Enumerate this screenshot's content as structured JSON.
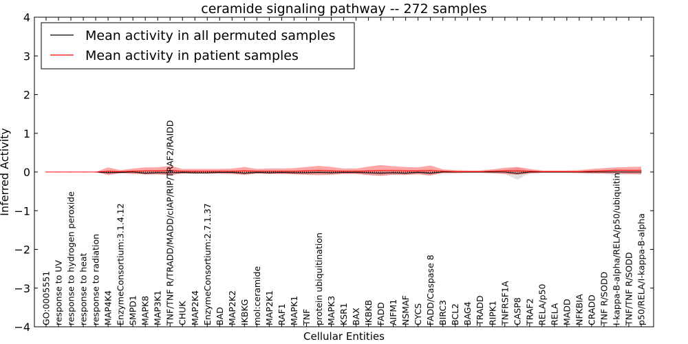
{
  "chart_data": {
    "type": "line",
    "title": "ceramide signaling pathway -- 272 samples",
    "xlabel": "Cellular Entities",
    "ylabel": "Inferred Activity",
    "ylim": [
      -4,
      4
    ],
    "yticks": [
      "−4",
      "−3",
      "−2",
      "−1",
      "0",
      "1",
      "2",
      "3",
      "4"
    ],
    "yticks_values": [
      -4,
      -3,
      -2,
      -1,
      0,
      1,
      2,
      3,
      4
    ],
    "categories": [
      "GO:0005551",
      "response to UV",
      "response to hydrogen peroxide",
      "response to heat",
      "response to radiation",
      "MAP4K4",
      "EnzymeConsortium:3.1.4.12",
      "SMPD1",
      "MAPK8",
      "MAP3K1",
      "TNF/TNF R/TRADD/MADD/cIAP/RIP/TRAF2/RAIDD",
      "CHUK",
      "MAP2K4",
      "EnzymeConsortium:2.7.1.37",
      "BAD",
      "MAP2K2",
      "IKBKG",
      "mol:ceramide",
      "MAP2K1",
      "RAF1",
      "MAPK1",
      "TNF",
      "protein ubiquitination",
      "MAPK3",
      "KSR1",
      "BAX",
      "IKBKB",
      "FADD",
      "AIFM1",
      "NSMAF",
      "CYCS",
      "FADD/Caspase 8",
      "BIRC3",
      "BCL2",
      "BAG4",
      "TRADD",
      "RIPK1",
      "TNFRSF1A",
      "CASP8",
      "TRAF2",
      "RELA/p50",
      "RELA",
      "MADD",
      "NFKBIA",
      "CRADD",
      "TNF R/SODD",
      "I-kappa-B-alpha/RELA/p50/ubiquitin",
      "TNF/TNF R/SODD",
      "p50/RELA/I-kappa-B-alpha"
    ],
    "series": [
      {
        "name": "Mean activity in all permuted samples",
        "color": "#000000",
        "values": [
          0,
          0,
          0,
          0,
          0,
          -0.02,
          -0.01,
          0,
          -0.03,
          -0.02,
          -0.02,
          -0.01,
          -0.02,
          -0.02,
          -0.01,
          -0.01,
          -0.03,
          -0.01,
          -0.02,
          -0.01,
          -0.02,
          -0.02,
          -0.01,
          -0.02,
          -0.01,
          -0.01,
          -0.02,
          -0.03,
          -0.02,
          -0.03,
          -0.01,
          -0.03,
          0,
          0,
          0,
          0,
          0,
          0,
          -0.04,
          0,
          0,
          0,
          0,
          0,
          0,
          0,
          0,
          0,
          0
        ],
        "band": [
          0,
          0,
          0,
          0,
          0,
          0.02,
          0.02,
          0.03,
          0.04,
          0.04,
          0.05,
          0.03,
          0.03,
          0.03,
          0.03,
          0.03,
          0.04,
          0.03,
          0.03,
          0.03,
          0.03,
          0.04,
          0.05,
          0.04,
          0.03,
          0.03,
          0.05,
          0.06,
          0.05,
          0.05,
          0.04,
          0.05,
          0.02,
          0.02,
          0.02,
          0.02,
          0.03,
          0.05,
          0.16,
          0.03,
          0.02,
          0.02,
          0.02,
          0.02,
          0.03,
          0.04,
          0.08,
          0.06,
          0.06
        ],
        "band_color": "#bbbbbb"
      },
      {
        "name": "Mean activity in patient samples",
        "color": "#ff0000",
        "values": [
          0,
          0,
          0,
          0,
          0,
          0.02,
          0.01,
          0.02,
          0.03,
          0.03,
          0.04,
          0.02,
          0.02,
          0.02,
          0.02,
          0.02,
          0.03,
          0.02,
          0.02,
          0.02,
          0.02,
          0.03,
          0.04,
          0.03,
          0.02,
          0.02,
          0.03,
          0.04,
          0.04,
          0.03,
          0.03,
          0.04,
          0.02,
          0.01,
          0.01,
          0.01,
          0.02,
          0.03,
          0.03,
          0.02,
          0.01,
          0.01,
          0.01,
          0.01,
          0.02,
          0.03,
          0.04,
          0.04,
          0.04
        ],
        "band": [
          0,
          0,
          0,
          0,
          0,
          0.1,
          0.04,
          0.07,
          0.09,
          0.09,
          0.12,
          0.06,
          0.06,
          0.06,
          0.06,
          0.07,
          0.1,
          0.06,
          0.07,
          0.07,
          0.08,
          0.1,
          0.12,
          0.1,
          0.07,
          0.07,
          0.11,
          0.14,
          0.11,
          0.1,
          0.09,
          0.13,
          0.05,
          0.04,
          0.03,
          0.03,
          0.05,
          0.08,
          0.1,
          0.06,
          0.03,
          0.03,
          0.03,
          0.04,
          0.06,
          0.07,
          0.08,
          0.09,
          0.1
        ],
        "band_color": "#ff0000"
      }
    ],
    "legend": {
      "position": "top-left",
      "entries": [
        "Mean activity in all permuted samples",
        "Mean activity in patient samples"
      ]
    },
    "grid": false,
    "reference_line": 0
  }
}
